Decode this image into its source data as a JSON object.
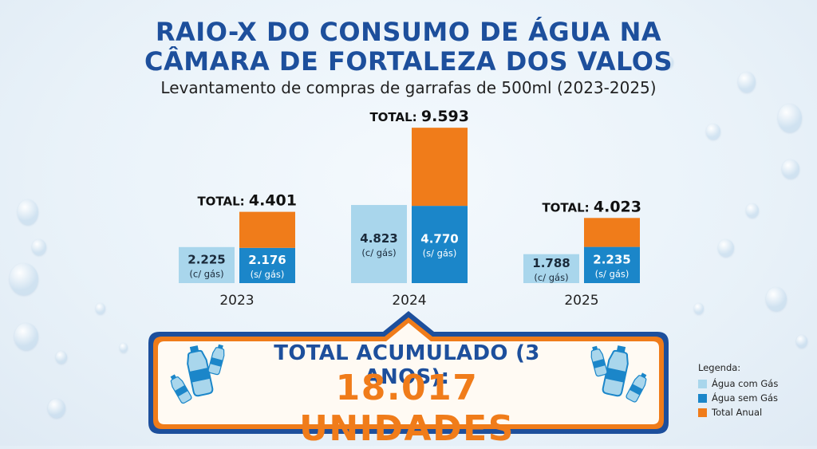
{
  "title_line1": "RAIO-X DO CONSUMO DE ÁGUA NA",
  "title_line2": "CÂMARA DE FORTALEZA DOS VALOS",
  "subtitle": "Levantamento de compras de garrafas de 500ml (2023-2025)",
  "colors": {
    "com_gas": "#a9d6ec",
    "sem_gas": "#1b86c9",
    "total": "#f07c1a",
    "title": "#1d4f9c",
    "frame": "#1d4f9c"
  },
  "chart_data": {
    "type": "bar",
    "title": "RAIO-X DO CONSUMO DE ÁGUA NA CÂMARA DE FORTALEZA DOS VALOS",
    "categories": [
      "2023",
      "2024",
      "2025"
    ],
    "series": [
      {
        "name": "Água com Gás",
        "values": [
          2225,
          4823,
          1788
        ],
        "labels": [
          "2.225",
          "4.823",
          "1.788"
        ],
        "sublabel": "(c/ gás)"
      },
      {
        "name": "Água sem Gás",
        "values": [
          2176,
          4770,
          2235
        ],
        "labels": [
          "2.176",
          "4.770",
          "2.235"
        ],
        "sublabel": "(s/ gás)"
      },
      {
        "name": "Total Anual",
        "values": [
          4401,
          9593,
          4023
        ]
      }
    ],
    "total_prefix": "TOTAL:",
    "total_labels": [
      "4.401",
      "9.593",
      "4.023"
    ],
    "ylim": [
      0,
      9600
    ]
  },
  "banner": {
    "title": "TOTAL ACUMULADO (3 ANOS):",
    "value": "18.017 UNIDADES"
  },
  "legend": {
    "title": "Legenda:",
    "items": [
      "Água com Gás",
      "Água sem Gás",
      "Total Anual"
    ]
  }
}
